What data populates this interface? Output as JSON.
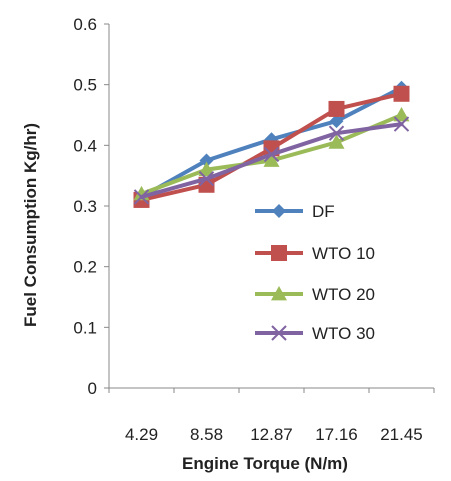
{
  "chart_data": {
    "type": "line",
    "title": "",
    "xlabel": "Engine Torque (N/m)",
    "ylabel": "Fuel Consumption Kg/hr)",
    "categories": [
      "4.29",
      "8.58",
      "12.87",
      "17.16",
      "21.45"
    ],
    "ylim": [
      0,
      0.6
    ],
    "yticks": [
      "0",
      "0.1",
      "0.2",
      "0.3",
      "0.4",
      "0.5",
      "0.6"
    ],
    "grid": false,
    "legend_position": "inside-right",
    "series": [
      {
        "name": "DF",
        "values": [
          0.315,
          0.375,
          0.41,
          0.44,
          0.495
        ],
        "color": "#4F81BD",
        "marker": "diamond"
      },
      {
        "name": "WTO 10",
        "values": [
          0.31,
          0.335,
          0.395,
          0.46,
          0.485
        ],
        "color": "#C0504D",
        "marker": "square"
      },
      {
        "name": "WTO 20",
        "values": [
          0.32,
          0.36,
          0.375,
          0.405,
          0.45
        ],
        "color": "#9BBB59",
        "marker": "triangle"
      },
      {
        "name": "WTO 30",
        "values": [
          0.315,
          0.345,
          0.385,
          0.42,
          0.435
        ],
        "color": "#8064A2",
        "marker": "x"
      }
    ]
  }
}
